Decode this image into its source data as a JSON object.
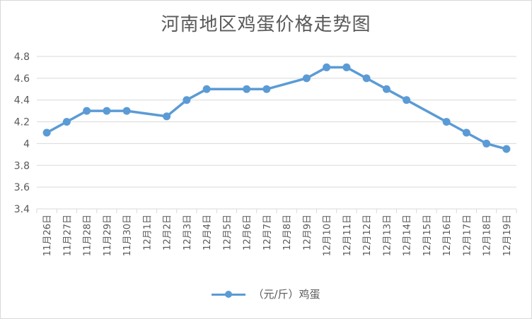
{
  "chart_data": {
    "type": "line",
    "title": "河南地区鸡蛋价格走势图",
    "categories": [
      "11月26日",
      "11月27日",
      "11月28日",
      "11月29日",
      "11月30日",
      "12月1日",
      "12月2日",
      "12月3日",
      "12月4日",
      "12月5日",
      "12月6日",
      "12月7日",
      "12月8日",
      "12月9日",
      "12月10日",
      "12月11日",
      "12月12日",
      "12月13日",
      "12月14日",
      "12月15日",
      "12月16日",
      "12月17日",
      "12月18日",
      "12月19日"
    ],
    "series": [
      {
        "name": "（元/斤）鸡蛋",
        "values": [
          4.1,
          4.2,
          4.3,
          4.3,
          4.3,
          null,
          4.25,
          4.4,
          4.5,
          null,
          4.5,
          4.5,
          null,
          4.6,
          4.7,
          4.7,
          4.6,
          4.5,
          4.4,
          null,
          4.2,
          4.1,
          4.0,
          3.95
        ]
      }
    ],
    "ylim": [
      3.4,
      4.8
    ],
    "yticks": [
      "3.4",
      "3.6",
      "3.8",
      "4",
      "4.2",
      "4.4",
      "4.6",
      "4.8"
    ],
    "grid": true,
    "legend": "bottom",
    "colors": {
      "line": "#5b9bd5",
      "grid": "#d9d9d9",
      "text": "#595959"
    }
  }
}
